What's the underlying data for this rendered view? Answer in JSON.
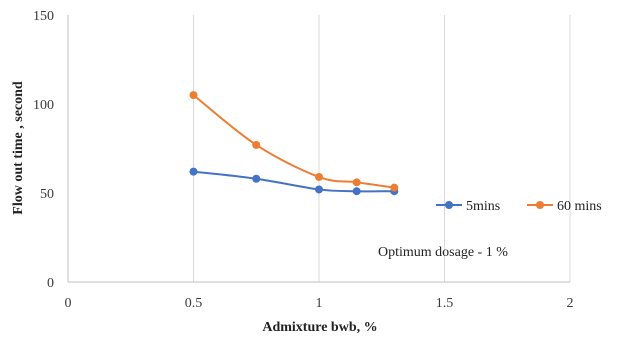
{
  "chart_data": {
    "type": "line",
    "title": "",
    "xlabel": "Admixture bwb, %",
    "ylabel": "Flow out time , second",
    "xlim": [
      0,
      2
    ],
    "ylim": [
      0,
      150
    ],
    "x_ticks": [
      "0",
      "0.5",
      "1",
      "1.5",
      "2"
    ],
    "y_ticks": [
      "0",
      "50",
      "100",
      "150"
    ],
    "grid": "vertical",
    "legend_position": "right",
    "series": [
      {
        "name": "5mins",
        "color": "#4472C4",
        "x": [
          0.5,
          0.75,
          1,
          1.15,
          1.3
        ],
        "y": [
          62,
          58,
          52,
          51,
          51
        ]
      },
      {
        "name": "60 mins",
        "color": "#ED7D31",
        "x": [
          0.5,
          0.75,
          1,
          1.15,
          1.3
        ],
        "y": [
          105,
          77,
          59,
          56,
          53
        ]
      }
    ],
    "annotations": [
      "Optimum dosage - 1 %"
    ]
  }
}
